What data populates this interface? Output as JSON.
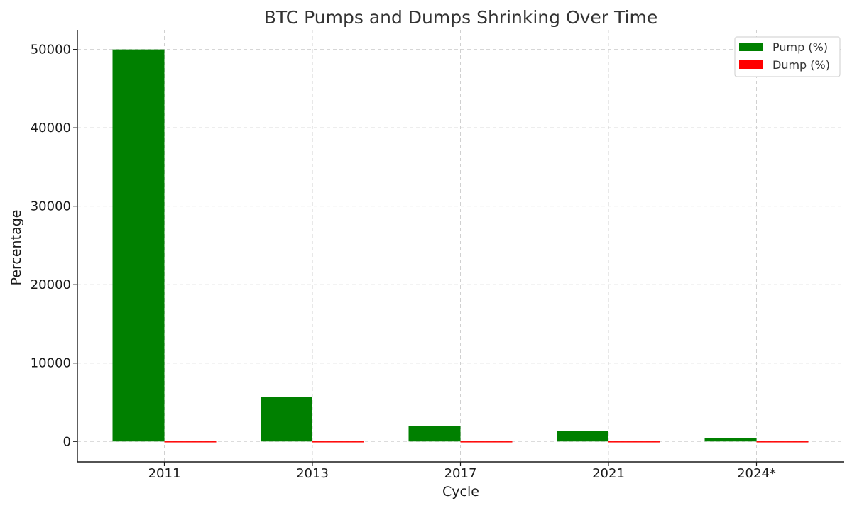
{
  "chart_data": {
    "type": "bar",
    "title": "BTC Pumps and Dumps Shrinking Over Time",
    "xlabel": "Cycle",
    "ylabel": "Percentage",
    "categories": [
      "2011",
      "2013",
      "2017",
      "2021",
      "2024*"
    ],
    "series": [
      {
        "name": "Pump (%)",
        "color": "#008000",
        "values": [
          50000,
          5700,
          2000,
          1300,
          400
        ]
      },
      {
        "name": "Dump (%)",
        "color": "#ff0000",
        "values": [
          -93,
          -86,
          -84,
          -77,
          -30
        ]
      }
    ],
    "ylim": [
      -2600,
      52500
    ],
    "yticks": [
      0,
      10000,
      20000,
      30000,
      40000,
      50000
    ],
    "grid": true,
    "legend_position": "top-right"
  }
}
